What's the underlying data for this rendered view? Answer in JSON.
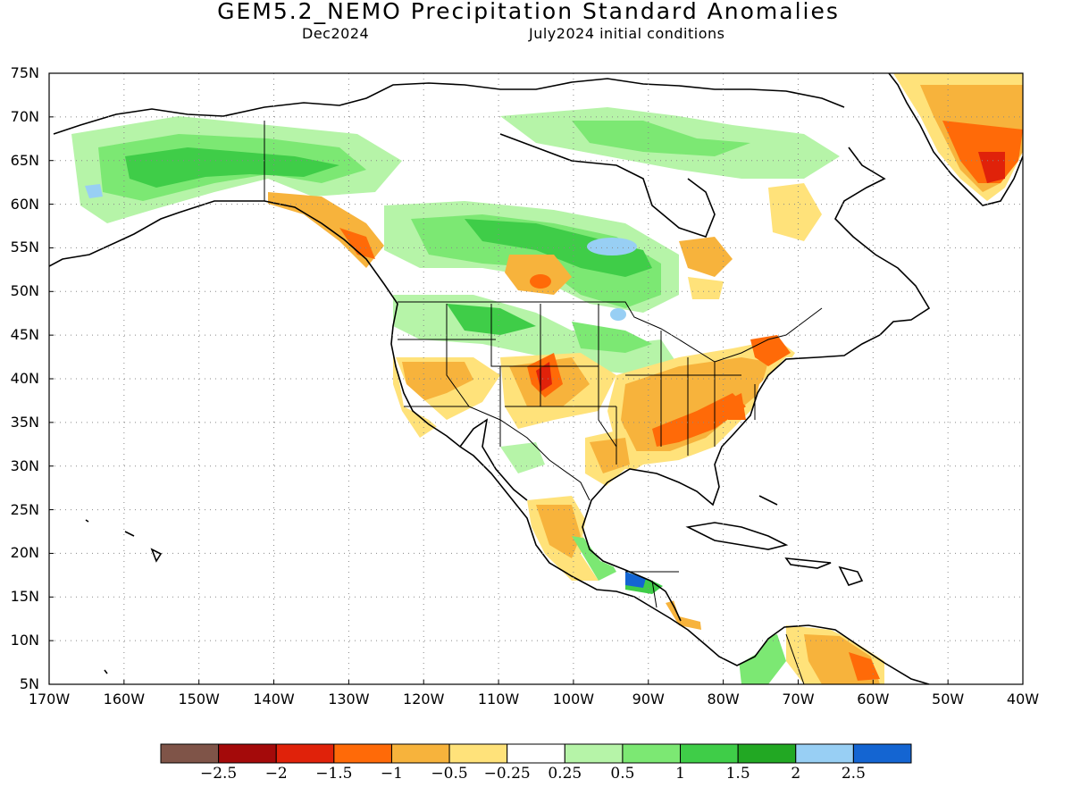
{
  "title": "GEM5.2_NEMO Precipitation Standard Anomalies",
  "subtitle_left": "Dec2024",
  "subtitle_right": "July2024 initial conditions",
  "lat_labels": [
    "75N",
    "70N",
    "65N",
    "60N",
    "55N",
    "50N",
    "45N",
    "40N",
    "35N",
    "30N",
    "25N",
    "20N",
    "15N",
    "10N",
    "5N"
  ],
  "lon_labels": [
    "170W",
    "160W",
    "150W",
    "140W",
    "130W",
    "120W",
    "110W",
    "100W",
    "90W",
    "80W",
    "70W",
    "60W",
    "50W",
    "40W"
  ],
  "map": {
    "region": {
      "lon_min": -170,
      "lon_max": -40,
      "lat_min": 5,
      "lat_max": 75
    },
    "gridlines": "dotted",
    "land_outline_color": "#000000"
  },
  "colorbar": {
    "colors": [
      "#7f5448",
      "#a40a0a",
      "#e0220a",
      "#ff6a08",
      "#f7b33c",
      "#ffe27a",
      "#ffffff",
      "#b6f4a8",
      "#7ce873",
      "#3fcd48",
      "#22a823",
      "#98cff4",
      "#1465d2"
    ],
    "labels": [
      "−2.5",
      "−2",
      "−1.5",
      "−1",
      "−0.5",
      "−0.25",
      "0.25",
      "0.5",
      "1",
      "1.5",
      "2",
      "2.5"
    ]
  }
}
